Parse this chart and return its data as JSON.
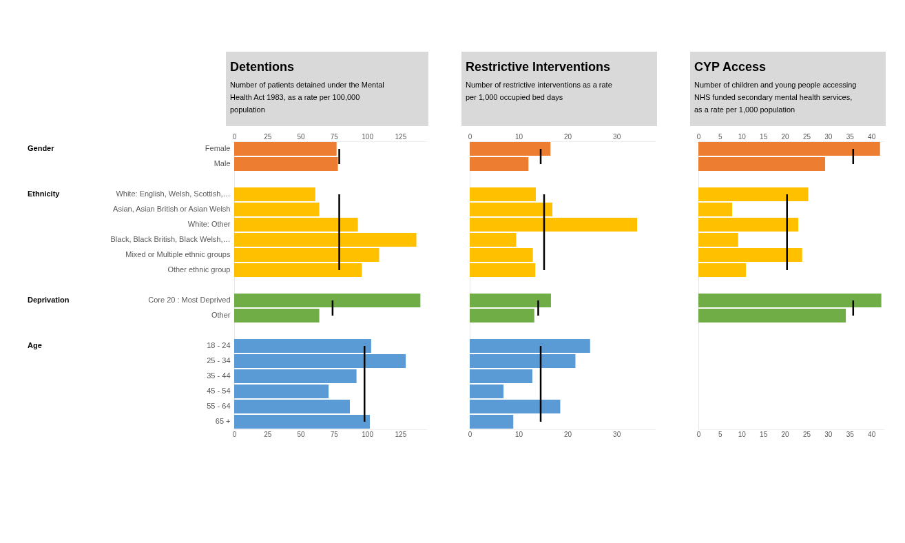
{
  "chart_data": [
    {
      "type": "bar",
      "orientation": "horizontal",
      "title": "Detentions",
      "subtitle": "Number of patients detained under the Mental Health Act 1983, as a rate per 100,000 population",
      "categories": [
        "Female",
        "Male",
        null,
        "White: English, Welsh, Scottish,…",
        "Asian, Asian British or Asian Welsh",
        "White: Other",
        "Black, Black British, Black Welsh,…",
        "Mixed or Multiple ethnic groups",
        "Other ethnic group",
        null,
        "Core 20 : Most Deprived",
        "Other",
        null,
        "18 - 24",
        "25 - 34",
        "35 - 44",
        "45 - 54",
        "55 - 64",
        "65 +"
      ],
      "series": [
        {
          "values": [
            77,
            78,
            null,
            61,
            64,
            93,
            137,
            109,
            96,
            null,
            140,
            64,
            null,
            103,
            129,
            92,
            71,
            87,
            102
          ],
          "colors": [
            "#ed7d31",
            "#ed7d31",
            null,
            "#ffc000",
            "#ffc000",
            "#ffc000",
            "#ffc000",
            "#ffc000",
            "#ffc000",
            null,
            "#70ad47",
            "#70ad47",
            null,
            "#5b9bd5",
            "#5b9bd5",
            "#5b9bd5",
            "#5b9bd5",
            "#5b9bd5",
            "#5b9bd5"
          ]
        },
        {
          "type": "line",
          "color": "#000000",
          "values": [
            79,
            79,
            null,
            79,
            79,
            79,
            79,
            79,
            79,
            null,
            74,
            74,
            null,
            98,
            98,
            98,
            98,
            98,
            98
          ]
        }
      ],
      "annotations": [
        "Gender",
        "Ethnicity",
        "Deprivation",
        "Age"
      ],
      "xlim": [
        0,
        145
      ],
      "xticks": [
        0,
        25,
        50,
        75,
        100,
        125
      ],
      "x2lim": [
        0,
        145
      ],
      "x2ticks": [
        0,
        25,
        50,
        75,
        100,
        125
      ]
    },
    {
      "type": "bar",
      "orientation": "horizontal",
      "title": "Restrictive Interventions",
      "subtitle": "Number of restrictive interventions as a rate per 1,000 occupied bed days",
      "categories": [
        null,
        null,
        null,
        null,
        null,
        null,
        null,
        null,
        null,
        null,
        null,
        null,
        null,
        null,
        null,
        null,
        null,
        null,
        null
      ],
      "series": [
        {
          "values": [
            16.5,
            12.0,
            null,
            13.5,
            16.9,
            34.2,
            9.5,
            12.9,
            13.4,
            null,
            16.6,
            13.2,
            null,
            24.6,
            21.6,
            12.8,
            6.9,
            18.5,
            8.9
          ],
          "colors": [
            "#ed7d31",
            "#ed7d31",
            null,
            "#ffc000",
            "#ffc000",
            "#ffc000",
            "#ffc000",
            "#ffc000",
            "#ffc000",
            null,
            "#70ad47",
            "#70ad47",
            null,
            "#5b9bd5",
            "#5b9bd5",
            "#5b9bd5",
            "#5b9bd5",
            "#5b9bd5",
            "#5b9bd5"
          ]
        },
        {
          "type": "line",
          "color": "#000000",
          "values": [
            14.5,
            14.5,
            null,
            15.2,
            15.2,
            15.2,
            15.2,
            15.2,
            15.2,
            null,
            14.0,
            14.0,
            null,
            14.5,
            14.5,
            14.5,
            14.5,
            14.5,
            14.5
          ]
        }
      ],
      "xlim": [
        0,
        38
      ],
      "xticks": [
        0,
        10,
        20,
        30
      ],
      "x2lim": [
        0,
        38
      ],
      "x2ticks": [
        0,
        10,
        20,
        30
      ],
      "tick_labels": "x"
    },
    {
      "type": "bar",
      "orientation": "horizontal",
      "title": "CYP Access",
      "subtitle": "Number of children and young people accessing NHS funded secondary mental health services, as a rate per 1,000 population",
      "categories": [
        null,
        null,
        null,
        null,
        null,
        null,
        null,
        null,
        null,
        null,
        null,
        null,
        null,
        null,
        null,
        null,
        null,
        null,
        null
      ],
      "series": [
        {
          "values": [
            42.0,
            29.3,
            null,
            25.4,
            7.8,
            23.1,
            9.2,
            24.0,
            11.0,
            null,
            42.3,
            34.1,
            null,
            null,
            null,
            null,
            null,
            null,
            null
          ],
          "colors": [
            "#ed7d31",
            "#ed7d31",
            null,
            "#ffc000",
            "#ffc000",
            "#ffc000",
            "#ffc000",
            "#ffc000",
            "#ffc000",
            null,
            "#70ad47",
            "#70ad47",
            null,
            null,
            null,
            null,
            null,
            null,
            null
          ]
        },
        {
          "type": "line",
          "color": "#000000",
          "values": [
            35.8,
            35.8,
            null,
            20.5,
            20.5,
            20.5,
            20.5,
            20.5,
            20.5,
            null,
            35.8,
            35.8,
            null,
            null,
            null,
            null,
            null,
            null,
            null
          ]
        }
      ],
      "xlim": [
        0,
        43
      ],
      "xticks": [
        0,
        5,
        10,
        15,
        20,
        25,
        30,
        35,
        40
      ],
      "x2lim": [
        0,
        43
      ],
      "x2ticks": [
        0,
        5,
        10,
        15,
        20,
        25,
        30,
        35,
        40
      ],
      "tick_labels": "x"
    }
  ]
}
